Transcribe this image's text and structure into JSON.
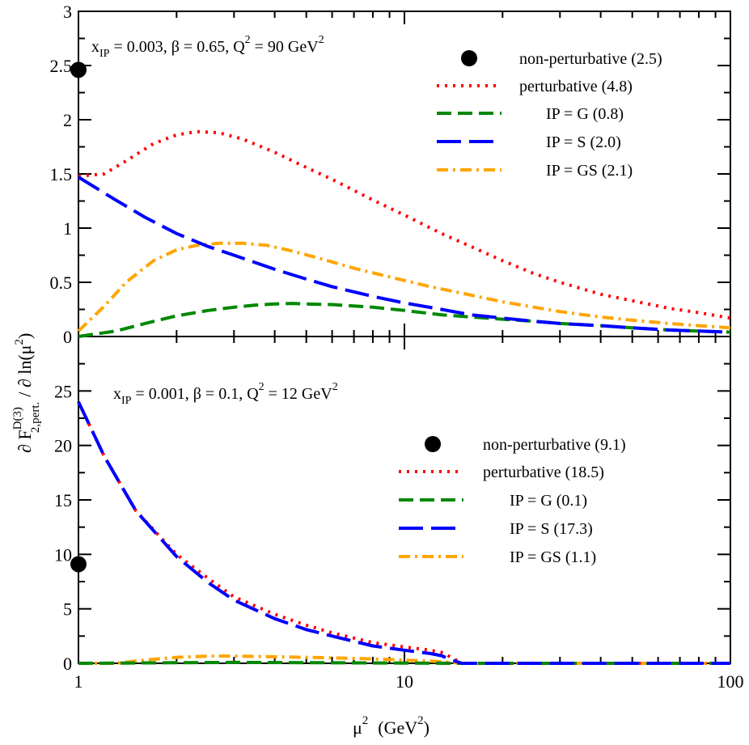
{
  "chart_data": [
    {
      "type": "line",
      "panel": "top",
      "annotation": {
        "x_sym": "x",
        "x_sub": "IP",
        "x_val": " = 0.003, β = 0.65, Q",
        "q_sup": "2",
        "q_val": " = 90 GeV",
        "gev_sup": "2"
      },
      "xscale": "log",
      "xlim": [
        1,
        100
      ],
      "ylim": [
        0,
        3
      ],
      "yticks": [
        0,
        0.5,
        1,
        1.5,
        2,
        2.5,
        3
      ],
      "ytick_labels": [
        "0",
        "0.5",
        "1",
        "1.5",
        "2",
        "2.5",
        "3"
      ],
      "nonpert_point": {
        "x": 1,
        "y": 2.46,
        "color": "#000000"
      },
      "legend_position": "top-right",
      "series": [
        {
          "name": "non-perturbative (2.5)",
          "style": "dot-marker",
          "color": "#000000"
        },
        {
          "name": "perturbative (4.8)",
          "style": "dotted",
          "color": "#ff0000",
          "x": [
            1,
            1.2,
            1.4,
            1.7,
            2,
            2.3,
            2.7,
            3.2,
            4,
            5,
            6,
            8,
            10,
            13,
            16,
            20,
            25,
            30,
            40,
            50,
            65,
            80,
            100
          ],
          "y": [
            1.48,
            1.5,
            1.62,
            1.78,
            1.86,
            1.89,
            1.88,
            1.82,
            1.7,
            1.56,
            1.45,
            1.26,
            1.12,
            0.95,
            0.83,
            0.7,
            0.58,
            0.5,
            0.39,
            0.33,
            0.26,
            0.22,
            0.17
          ]
        },
        {
          "name": "IP = G (0.8)",
          "style": "dashed",
          "color": "#008800",
          "x": [
            1,
            1.3,
            1.6,
            2,
            2.5,
            3,
            3.5,
            4,
            4.5,
            5,
            6,
            8,
            10,
            13,
            16,
            20,
            25,
            30,
            40,
            50,
            65,
            80,
            100
          ],
          "y": [
            0.0,
            0.05,
            0.12,
            0.19,
            0.24,
            0.27,
            0.29,
            0.3,
            0.305,
            0.3,
            0.295,
            0.27,
            0.24,
            0.2,
            0.18,
            0.16,
            0.14,
            0.12,
            0.1,
            0.08,
            0.06,
            0.05,
            0.04
          ]
        },
        {
          "name": "IP = S (2.0)",
          "style": "long-dashed",
          "color": "#0000ff",
          "x": [
            1,
            1.3,
            1.6,
            2,
            2.5,
            3,
            4,
            5,
            6,
            8,
            10,
            13,
            16,
            20,
            25,
            30,
            40,
            50,
            65,
            80,
            100
          ],
          "y": [
            1.47,
            1.26,
            1.1,
            0.95,
            0.83,
            0.75,
            0.62,
            0.53,
            0.46,
            0.37,
            0.31,
            0.25,
            0.2,
            0.17,
            0.14,
            0.12,
            0.1,
            0.08,
            0.06,
            0.05,
            0.04
          ]
        },
        {
          "name": "IP = GS (2.1)",
          "style": "dash-dot",
          "color": "#ffa500",
          "x": [
            1,
            1.2,
            1.4,
            1.7,
            2,
            2.3,
            2.7,
            3.2,
            3.8,
            4.5,
            5.5,
            7,
            9,
            12,
            15,
            20,
            25,
            30,
            40,
            50,
            65,
            80,
            100
          ],
          "y": [
            0.05,
            0.28,
            0.5,
            0.7,
            0.8,
            0.84,
            0.86,
            0.86,
            0.84,
            0.79,
            0.72,
            0.63,
            0.55,
            0.46,
            0.4,
            0.32,
            0.27,
            0.23,
            0.18,
            0.15,
            0.12,
            0.1,
            0.08
          ]
        }
      ]
    },
    {
      "type": "line",
      "panel": "bottom",
      "annotation": {
        "x_sym": "x",
        "x_sub": "IP",
        "x_val": " = 0.001, β = 0.1, Q",
        "q_sup": "2",
        "q_val": " = 12 GeV",
        "gev_sup": "2"
      },
      "xscale": "log",
      "xlim": [
        1,
        100
      ],
      "ylim": [
        0,
        30
      ],
      "yticks": [
        0,
        5,
        10,
        15,
        20,
        25
      ],
      "ytick_labels": [
        "0",
        "5",
        "10",
        "15",
        "20",
        "25"
      ],
      "xticks": [
        1,
        10,
        100
      ],
      "xtick_labels": [
        "1",
        "10",
        "100"
      ],
      "nonpert_point": {
        "x": 1,
        "y": 9.1,
        "color": "#000000"
      },
      "legend_position": "right",
      "series": [
        {
          "name": "non-perturbative (9.1)",
          "style": "dot-marker",
          "color": "#000000"
        },
        {
          "name": "perturbative (18.5)",
          "style": "dotted",
          "color": "#ff0000",
          "x": [
            1,
            1.2,
            1.5,
            2,
            2.5,
            3,
            4,
            5,
            6,
            8,
            10,
            12,
            13,
            14,
            15,
            20,
            50,
            100
          ],
          "y": [
            24,
            19,
            14,
            10,
            7.8,
            6.1,
            4.5,
            3.5,
            2.8,
            1.9,
            1.5,
            1.2,
            1.0,
            0.5,
            0,
            0,
            0,
            0
          ]
        },
        {
          "name": "IP = G (0.1)",
          "style": "dashed",
          "color": "#008800",
          "x": [
            1,
            2,
            3,
            5,
            8,
            10,
            15,
            30,
            100
          ],
          "y": [
            0,
            0.05,
            0.08,
            0.06,
            0.03,
            0.02,
            0,
            0,
            0
          ]
        },
        {
          "name": "IP = S (17.3)",
          "style": "long-dashed",
          "color": "#0000ff",
          "x": [
            1,
            1.2,
            1.5,
            2,
            2.5,
            3,
            4,
            5,
            6,
            8,
            10,
            12,
            13,
            14,
            15,
            20,
            50,
            100
          ],
          "y": [
            24,
            19,
            14,
            9.8,
            7.4,
            5.8,
            4.1,
            3.1,
            2.5,
            1.6,
            1.2,
            0.9,
            0.7,
            0.3,
            0,
            0,
            0,
            0
          ]
        },
        {
          "name": "IP = GS (1.1)",
          "style": "dash-dot",
          "color": "#ffa500",
          "x": [
            1,
            1.3,
            1.6,
            2,
            2.5,
            3,
            4,
            5,
            6,
            8,
            10,
            12,
            14,
            15,
            20,
            50,
            100
          ],
          "y": [
            0,
            0,
            0.3,
            0.55,
            0.65,
            0.66,
            0.6,
            0.55,
            0.5,
            0.4,
            0.3,
            0.2,
            0.08,
            0,
            0,
            0,
            0
          ]
        }
      ]
    }
  ],
  "axes": {
    "xlabel_mu": "μ",
    "xlabel_sup": "2",
    "xlabel_unit": "(GeV",
    "xlabel_unit_sup": "2",
    "xlabel_close": ")",
    "ylabel_d": "∂ F",
    "ylabel_sup": "D(3)",
    "ylabel_sub": "2,pert.",
    "ylabel_rest": "/ ∂ ln(μ",
    "ylabel_rest_sup": "2",
    "ylabel_close": ")"
  }
}
